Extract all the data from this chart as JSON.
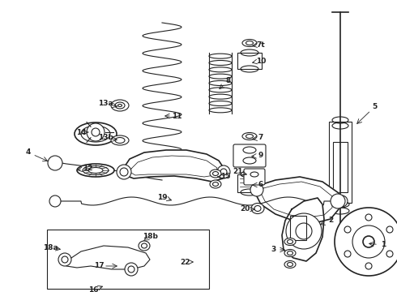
{
  "background_color": "#ffffff",
  "figsize": [
    4.9,
    3.6
  ],
  "dpi": 100,
  "gray": "#222222",
  "lw": 1.2,
  "lw2": 0.8,
  "labels_pos": [
    [
      "1",
      473,
      302,
      452,
      300
    ],
    [
      "2",
      408,
      272,
      392,
      278
    ],
    [
      "3",
      337,
      308,
      355,
      308
    ],
    [
      "4",
      35,
      188,
      62,
      200
    ],
    [
      "5",
      462,
      132,
      438,
      155
    ],
    [
      "6",
      322,
      228,
      308,
      228
    ],
    [
      "7",
      322,
      170,
      308,
      172
    ],
    [
      "7t",
      322,
      55,
      308,
      57
    ],
    [
      "8",
      282,
      100,
      268,
      112
    ],
    [
      "9",
      322,
      192,
      307,
      193
    ],
    [
      "10",
      322,
      75,
      308,
      78
    ],
    [
      "11",
      218,
      143,
      200,
      143
    ],
    [
      "12",
      108,
      208,
      92,
      210
    ],
    [
      "13a",
      130,
      128,
      148,
      132
    ],
    [
      "13b",
      130,
      170,
      148,
      173
    ],
    [
      "14",
      100,
      163,
      112,
      163
    ],
    [
      "15",
      278,
      218,
      265,
      218
    ],
    [
      "16",
      115,
      357,
      130,
      352
    ],
    [
      "17",
      122,
      328,
      148,
      328
    ],
    [
      "18a",
      62,
      305,
      78,
      308
    ],
    [
      "18b",
      185,
      292,
      175,
      298
    ],
    [
      "19",
      200,
      243,
      215,
      248
    ],
    [
      "20",
      302,
      258,
      318,
      258
    ],
    [
      "21",
      293,
      212,
      308,
      216
    ],
    [
      "22",
      228,
      323,
      242,
      323
    ]
  ]
}
